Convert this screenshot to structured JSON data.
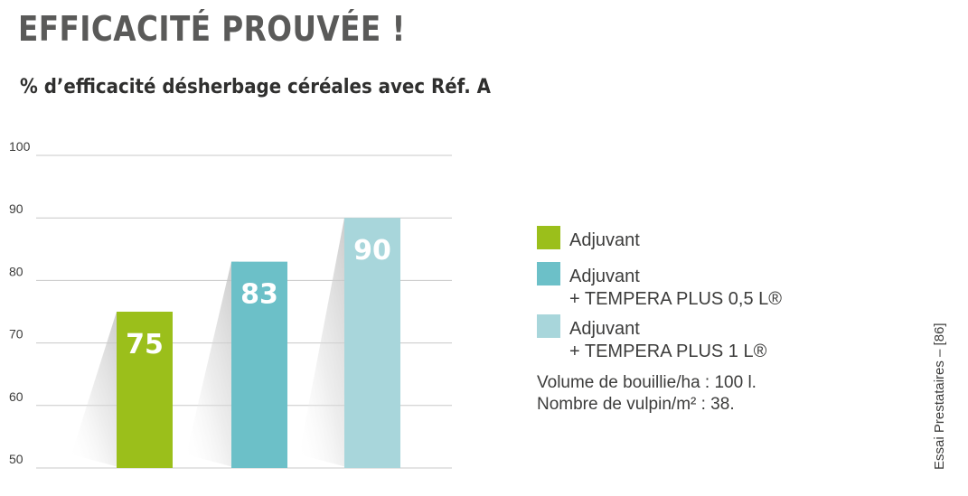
{
  "headline": "EFFICACITÉ PROUVÉE !",
  "chart_data": {
    "type": "bar",
    "title": "% d’efficacité désherbage céréales avec Réf. A",
    "categories": [
      "Adjuvant",
      "Adjuvant + TEMPERA PLUS 0,5 L®",
      "Adjuvant + TEMPERA PLUS 1 L®"
    ],
    "values": [
      75,
      83,
      90
    ],
    "data_labels": [
      "75",
      "83",
      "90"
    ],
    "colors": [
      "#9bbf1b",
      "#6cc0c8",
      "#a8d6db"
    ],
    "ylim": [
      50,
      100
    ],
    "yticks": [
      100,
      90,
      80,
      70,
      60,
      50
    ],
    "xlabel": "",
    "ylabel": "",
    "grid": true,
    "legend_position": "right"
  },
  "legend": [
    {
      "line1": "Adjuvant",
      "line2": "",
      "color": "#9bbf1b"
    },
    {
      "line1": "Adjuvant",
      "line2": "+ TEMPERA PLUS 0,5 L®",
      "color": "#6cc0c8"
    },
    {
      "line1": "Adjuvant",
      "line2": "+ TEMPERA PLUS 1 L®",
      "color": "#a8d6db"
    }
  ],
  "notes": {
    "volume": "Volume de bouillie/ha : 100 l.",
    "vulpin": "Nombre de vulpin/m² : 38."
  },
  "source": "Essai Prestataires – [86]"
}
